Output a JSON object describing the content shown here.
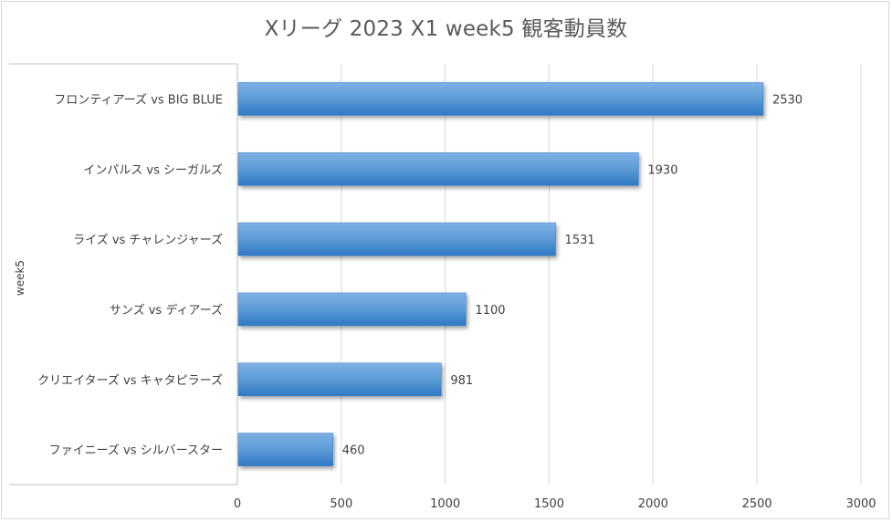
{
  "chart_data": {
    "type": "bar",
    "orientation": "horizontal",
    "title": "Xリーグ 2023 X1 week5 観客動員数",
    "ylabel": "week5",
    "xlabel": "",
    "categories": [
      "フロンティアーズ vs BIG BLUE",
      "インパルス vs シーガルズ",
      "ライズ vs チャレンジャーズ",
      "サンズ vs ディアーズ",
      "クリエイターズ vs キャタピラーズ",
      "ファイニーズ vs シルバースター"
    ],
    "values": [
      2530,
      1930,
      1531,
      1100,
      981,
      460
    ],
    "data_labels": [
      "2530",
      "1930",
      "1531",
      "1100",
      "981",
      "460"
    ],
    "xlim": [
      0,
      3000
    ],
    "xticks": [
      "0",
      "500",
      "1000",
      "1500",
      "2000",
      "2500",
      "3000"
    ],
    "grid": "vertical",
    "legend": "none",
    "colors": {
      "bar_light": "#7fb0e6",
      "bar_mid": "#5b9bd5",
      "bar_dark": "#2f78c4",
      "grid": "#d9d9d9",
      "text": "#404040"
    }
  }
}
